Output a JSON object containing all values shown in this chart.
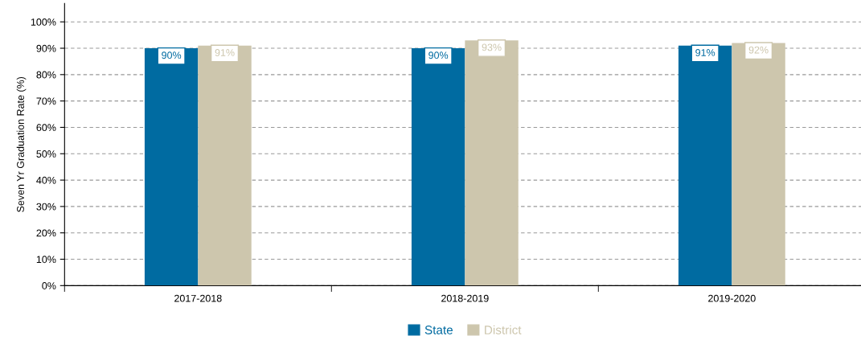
{
  "chart_data": {
    "type": "bar",
    "ylabel": "Seven Yr Graduation Rate (%)",
    "categories": [
      "2017-2018",
      "2018-2019",
      "2019-2020"
    ],
    "series": [
      {
        "name": "State",
        "color": "#006ba1",
        "values": [
          90,
          90,
          91
        ],
        "value_labels": [
          "90%",
          "90%",
          "91%"
        ]
      },
      {
        "name": "District",
        "color": "#cdc6ad",
        "values": [
          91,
          93,
          92
        ],
        "value_labels": [
          "91%",
          "93%",
          "92%"
        ]
      }
    ],
    "ylim": [
      0,
      107
    ],
    "yticks": [
      {
        "value": 0,
        "label": "0%"
      },
      {
        "value": 10,
        "label": "10%"
      },
      {
        "value": 20,
        "label": "20%"
      },
      {
        "value": 30,
        "label": "30%"
      },
      {
        "value": 40,
        "label": "40%"
      },
      {
        "value": 50,
        "label": "50%"
      },
      {
        "value": 60,
        "label": "60%"
      },
      {
        "value": 70,
        "label": "70%"
      },
      {
        "value": 80,
        "label": "80%"
      },
      {
        "value": 90,
        "label": "90%"
      },
      {
        "value": 100,
        "label": "100%"
      }
    ],
    "grid": "y",
    "legend": "bottom"
  }
}
